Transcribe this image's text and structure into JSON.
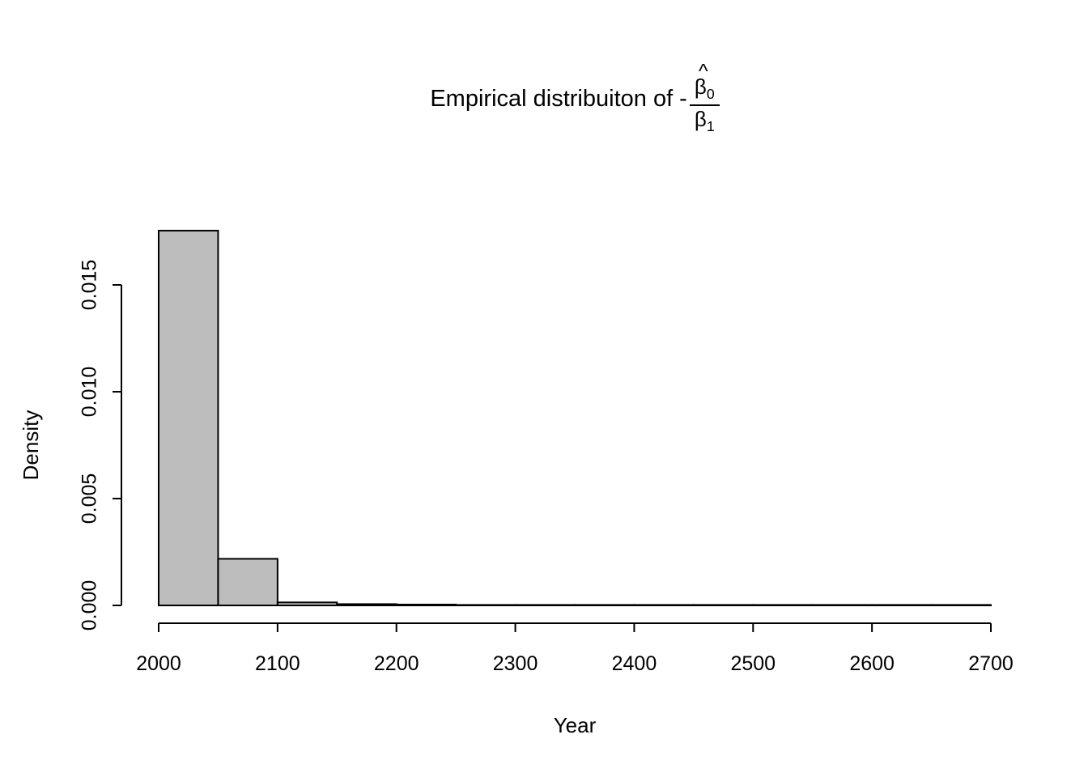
{
  "title": {
    "prefix": "Empirical distribuiton of -",
    "hat": "^",
    "beta": "β",
    "num_sub": "0",
    "den_sub": "1"
  },
  "chart_data": {
    "type": "bar",
    "subtype": "histogram",
    "title": "Empirical distribuiton of -β̂0/β1",
    "xlabel": "Year",
    "ylabel": "Density",
    "xlim": [
      2000,
      2700
    ],
    "ylim": [
      0,
      0.015
    ],
    "bin_start": 2000,
    "bin_width": 50,
    "densities": [
      0.01754,
      0.00218,
      0.00014,
      6e-05,
      4e-05,
      2e-05,
      2e-05,
      2e-05,
      2e-05,
      2e-05,
      2e-05,
      2e-05,
      2e-05,
      2e-05
    ],
    "x_ticks": [
      2000,
      2100,
      2200,
      2300,
      2400,
      2500,
      2600,
      2700
    ],
    "y_ticks": [
      0.0,
      0.005,
      0.01,
      0.015
    ],
    "y_tick_labels": [
      "0.000",
      "0.005",
      "0.010",
      "0.015"
    ],
    "grid": false,
    "legend": "none",
    "bar_fill": "#bdbdbd",
    "bar_stroke": "#000000",
    "background": "#ffffff"
  }
}
